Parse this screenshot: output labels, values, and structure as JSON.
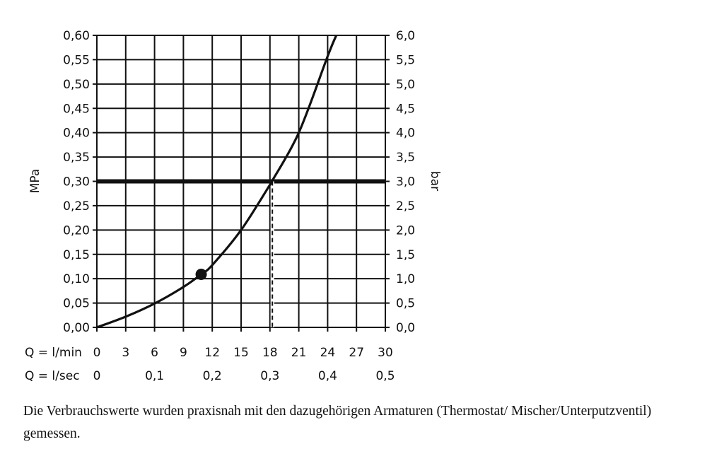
{
  "chart_data": {
    "type": "line",
    "y_left_label": "MPa",
    "y_right_label": "bar",
    "xlim": [
      0,
      30
    ],
    "ylim": [
      0,
      0.6
    ],
    "grid": true,
    "x_ticks": [
      0,
      3,
      6,
      9,
      12,
      15,
      18,
      21,
      24,
      27,
      30
    ],
    "x_tick_labels": [
      "0",
      "3",
      "6",
      "9",
      "12",
      "15",
      "18",
      "21",
      "24",
      "27",
      "30"
    ],
    "x_row_label": "Q = l/min",
    "x2_row_label": "Q = l/sec",
    "x2_ticks": [
      0,
      6,
      12,
      18,
      24,
      30
    ],
    "x2_tick_labels": [
      "0",
      "0,1",
      "0,2",
      "0,3",
      "0,4",
      "0,5"
    ],
    "y_ticks": [
      0,
      0.05,
      0.1,
      0.15,
      0.2,
      0.25,
      0.3,
      0.35,
      0.4,
      0.45,
      0.5,
      0.55,
      0.6
    ],
    "y_left_tick_labels": [
      "0,00",
      "0,05",
      "0,10",
      "0,15",
      "0,20",
      "0,25",
      "0,30",
      "0,35",
      "0,40",
      "0,45",
      "0,50",
      "0,55",
      "0,60"
    ],
    "y_right_tick_labels": [
      "0,0",
      "0,5",
      "1,0",
      "1,5",
      "2,0",
      "2,5",
      "3,0",
      "3,5",
      "4,0",
      "4,5",
      "5,0",
      "5,5",
      "6,0"
    ],
    "series": [
      {
        "x": [
          0,
          3,
          6,
          9,
          10.85,
          12,
          15,
          18,
          18.2,
          21,
          24,
          24.9
        ],
        "y": [
          0,
          0.022,
          0.049,
          0.083,
          0.109,
          0.128,
          0.2,
          0.293,
          0.3,
          0.4,
          0.557,
          0.6
        ]
      }
    ],
    "reference_line_y": 0.3,
    "dashed_drop_x": 18.25,
    "marked_point": {
      "x": 10.85,
      "y": 0.109
    },
    "color": "#111111"
  },
  "caption": "Die Verbrauchswerte wurden praxisnah mit den dazugehörigen Armaturen (Thermostat/ Mischer/Unterputzventil) gemessen."
}
